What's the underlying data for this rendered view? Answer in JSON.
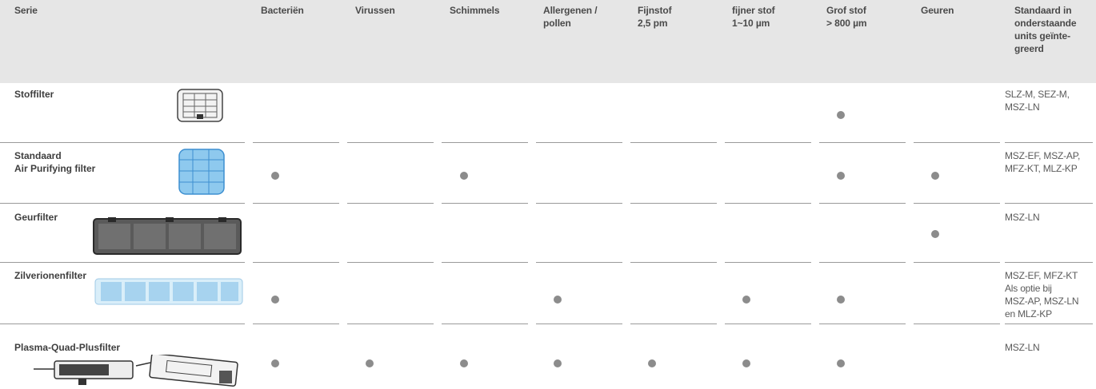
{
  "headers": {
    "serie": "Serie",
    "bacterien": "Bacteriën",
    "virussen": "Virussen",
    "schimmels": "Schimmels",
    "allergenen": "Allergenen /\npollen",
    "fijnstof": "Fijnstof\n2,5 pm",
    "fijner": "fijner stof\n1~10 µm",
    "grof": "Grof stof\n> 800 µm",
    "geuren": "Geuren",
    "units": "Standaard in\nonderstaande\nunits geïnte-\ngreerd"
  },
  "rows": [
    {
      "label": "Stoffilter",
      "image": "fabric-filter-icon",
      "marks": [
        false,
        false,
        false,
        false,
        false,
        false,
        true,
        false
      ],
      "units": "SLZ-M, SEZ-M,\nMSZ-LN"
    },
    {
      "label": "Standaard\nAir Purifying filter",
      "image": "air-purifying-filter-icon",
      "marks": [
        true,
        false,
        true,
        false,
        false,
        false,
        true,
        true
      ],
      "units": "MSZ-EF, MSZ-AP,\nMFZ-KT, MLZ-KP"
    },
    {
      "label": "Geurfilter",
      "image": "odor-filter-icon",
      "marks": [
        false,
        false,
        false,
        false,
        false,
        false,
        false,
        true
      ],
      "units": "MSZ-LN"
    },
    {
      "label": "Zilverionenfilter",
      "image": "silver-ion-filter-icon",
      "marks": [
        true,
        false,
        false,
        true,
        false,
        true,
        true,
        false
      ],
      "units": "MSZ-EF, MFZ-KT\nAls optie bij\nMSZ-AP, MSZ-LN\nen MLZ-KP"
    },
    {
      "label": "Plasma-Quad-Plusfilter",
      "image": "plasma-quad-plus-filter-icon",
      "marks": [
        true,
        true,
        true,
        true,
        true,
        true,
        true,
        false
      ],
      "units": "MSZ-LN"
    }
  ],
  "colors": {
    "header_bg": "#e6e6e6",
    "dot": "#8c8c8c",
    "rule": "#9a9a9a"
  }
}
